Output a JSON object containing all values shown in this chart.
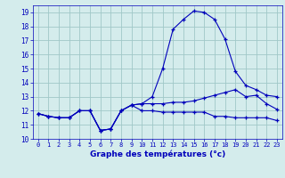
{
  "line1_x": [
    0,
    1,
    2,
    3,
    4,
    5,
    6,
    7,
    8,
    9,
    10,
    11,
    12,
    13,
    14,
    15,
    16,
    17,
    18,
    19,
    20,
    21,
    22,
    23
  ],
  "line1_y": [
    11.8,
    11.6,
    11.5,
    11.5,
    12.0,
    12.0,
    10.6,
    10.7,
    12.0,
    12.4,
    12.5,
    13.0,
    15.0,
    17.8,
    18.5,
    19.1,
    19.0,
    18.5,
    17.1,
    14.8,
    13.8,
    13.5,
    13.1,
    13.0
  ],
  "line2_x": [
    0,
    1,
    2,
    3,
    4,
    5,
    6,
    7,
    8,
    9,
    10,
    11,
    12,
    13,
    14,
    15,
    16,
    17,
    18,
    19,
    20,
    21,
    22,
    23
  ],
  "line2_y": [
    11.8,
    11.6,
    11.5,
    11.5,
    12.0,
    12.0,
    10.6,
    10.7,
    12.0,
    12.4,
    12.5,
    12.5,
    12.5,
    12.6,
    12.6,
    12.7,
    12.9,
    13.1,
    13.3,
    13.5,
    13.0,
    13.1,
    12.5,
    12.1
  ],
  "line3_x": [
    0,
    1,
    2,
    3,
    4,
    5,
    6,
    7,
    8,
    9,
    10,
    11,
    12,
    13,
    14,
    15,
    16,
    17,
    18,
    19,
    20,
    21,
    22,
    23
  ],
  "line3_y": [
    11.8,
    11.6,
    11.5,
    11.5,
    12.0,
    12.0,
    10.6,
    10.7,
    12.0,
    12.4,
    12.0,
    12.0,
    11.9,
    11.9,
    11.9,
    11.9,
    11.9,
    11.6,
    11.6,
    11.5,
    11.5,
    11.5,
    11.5,
    11.3
  ],
  "line_color": "#0000bb",
  "bg_color": "#d4ecec",
  "grid_color": "#a0c8c8",
  "xlabel": "Graphe des températures (°c)",
  "xlabel_color": "#0000bb",
  "tick_color": "#0000bb",
  "xlim": [
    -0.5,
    23.5
  ],
  "ylim": [
    10,
    19.5
  ],
  "yticks": [
    10,
    11,
    12,
    13,
    14,
    15,
    16,
    17,
    18,
    19
  ],
  "xticks": [
    0,
    1,
    2,
    3,
    4,
    5,
    6,
    7,
    8,
    9,
    10,
    11,
    12,
    13,
    14,
    15,
    16,
    17,
    18,
    19,
    20,
    21,
    22,
    23
  ]
}
